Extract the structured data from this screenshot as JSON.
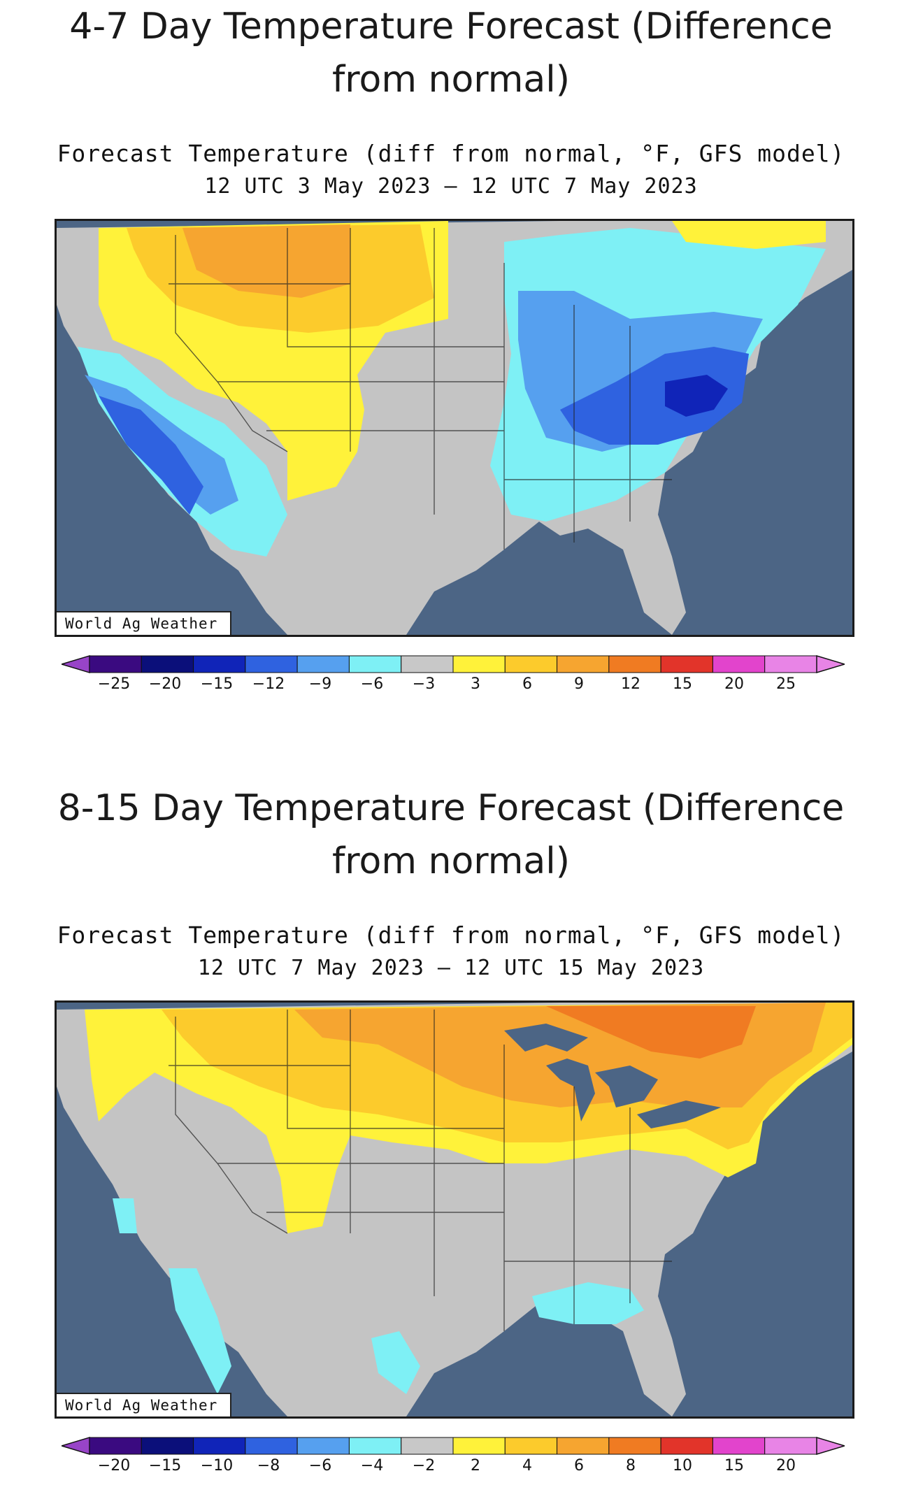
{
  "sections": [
    {
      "heading": "4-7 Day Temperature Forecast (Difference from normal)",
      "map_title": "Forecast Temperature (diff from normal, °F, GFS model)",
      "map_period": "12 UTC 3 May 2023 – 12 UTC 7 May 2023",
      "credit": "World Ag Weather",
      "legend": {
        "ticks": [
          "−25",
          "−20",
          "−15",
          "−12",
          "−9",
          "−6",
          "−3",
          "3",
          "6",
          "9",
          "12",
          "15",
          "20",
          "25"
        ],
        "colors": [
          "#3a0a80",
          "#0b0f7a",
          "#1024b8",
          "#2f62e0",
          "#56a0ef",
          "#7ef0f5",
          "#c8c8c8",
          "#fff23a",
          "#fccb2c",
          "#f6a530",
          "#f07b22",
          "#e2342a",
          "#e244cc",
          "#e884e6"
        ]
      }
    },
    {
      "heading": "8-15 Day Temperature Forecast (Difference from normal)",
      "map_title": "Forecast Temperature (diff from normal, °F, GFS model)",
      "map_period": "12 UTC 7 May 2023 – 12 UTC 15 May 2023",
      "credit": "World Ag Weather",
      "legend": {
        "ticks": [
          "−20",
          "−15",
          "−10",
          "−8",
          "−6",
          "−4",
          "−2",
          "2",
          "4",
          "6",
          "8",
          "10",
          "15",
          "20"
        ],
        "colors": [
          "#3a0a80",
          "#0b0f7a",
          "#1024b8",
          "#2f62e0",
          "#56a0ef",
          "#7ef0f5",
          "#c8c8c8",
          "#fff23a",
          "#fccb2c",
          "#f6a530",
          "#f07b22",
          "#e2342a",
          "#e244cc",
          "#e884e6"
        ]
      }
    }
  ]
}
